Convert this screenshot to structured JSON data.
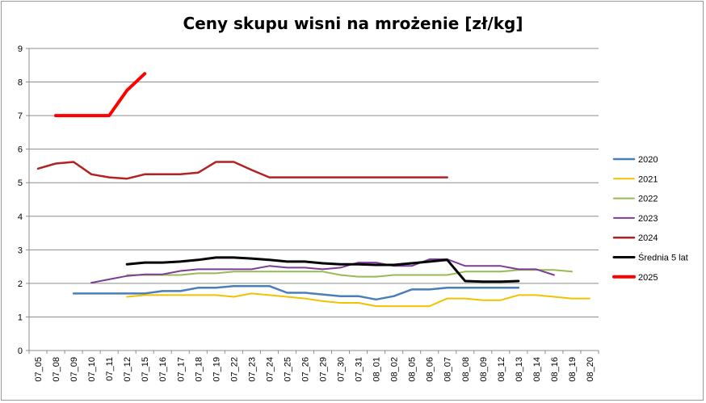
{
  "chart_data": {
    "type": "line",
    "title": "Ceny skupu wisni na mrożenie [zł/kg]",
    "xlabel": "",
    "ylabel": "",
    "ylim": [
      0,
      9
    ],
    "yticks": [
      "0",
      "1",
      "2",
      "3",
      "4",
      "5",
      "6",
      "7",
      "8",
      "9"
    ],
    "grid": "horizontal",
    "legend_position": "right",
    "categories": [
      "07_05",
      "07_08",
      "07_09",
      "07_10",
      "07_11",
      "07_12",
      "07_15",
      "07_16",
      "07_17",
      "07_18",
      "07_19",
      "07_22",
      "07_23",
      "07_24",
      "07_25",
      "07_26",
      "07_29",
      "07_30",
      "07_31",
      "08_01",
      "08_02",
      "08_05",
      "08_06",
      "08_07",
      "08_08",
      "08_09",
      "08_12",
      "08_13",
      "08_14",
      "08_16",
      "08_19",
      "08_20"
    ],
    "series": [
      {
        "name": "2020",
        "color": "#4a7ebb",
        "width": 2.5,
        "values": [
          null,
          null,
          1.7,
          1.7,
          1.7,
          1.7,
          1.7,
          1.77,
          1.77,
          1.87,
          1.87,
          1.92,
          1.92,
          1.92,
          1.72,
          1.72,
          1.67,
          1.62,
          1.62,
          1.52,
          1.62,
          1.82,
          1.82,
          1.87,
          1.87,
          1.87,
          1.87,
          1.87,
          null,
          null,
          null,
          null
        ]
      },
      {
        "name": "2021",
        "color": "#f2c200",
        "width": 2,
        "values": [
          null,
          null,
          null,
          null,
          null,
          1.6,
          1.65,
          1.65,
          1.65,
          1.65,
          1.65,
          1.6,
          1.7,
          1.65,
          1.6,
          1.55,
          1.47,
          1.42,
          1.42,
          1.32,
          1.32,
          1.32,
          1.32,
          1.55,
          1.55,
          1.5,
          1.5,
          1.65,
          1.65,
          1.6,
          1.55,
          1.55
        ]
      },
      {
        "name": "2022",
        "color": "#98b954",
        "width": 2,
        "values": [
          null,
          null,
          null,
          null,
          null,
          2.25,
          2.25,
          2.25,
          2.25,
          2.3,
          2.3,
          2.35,
          2.35,
          2.35,
          2.35,
          2.35,
          2.35,
          2.25,
          2.2,
          2.2,
          2.25,
          2.25,
          2.25,
          2.25,
          2.35,
          2.35,
          2.35,
          2.4,
          2.4,
          2.4,
          2.35,
          null
        ]
      },
      {
        "name": "2023",
        "color": "#7d3c98",
        "width": 2,
        "values": [
          null,
          null,
          null,
          2.02,
          2.12,
          2.22,
          2.27,
          2.27,
          2.37,
          2.42,
          2.42,
          2.42,
          2.42,
          2.52,
          2.47,
          2.47,
          2.42,
          2.47,
          2.62,
          2.62,
          2.52,
          2.52,
          2.72,
          2.72,
          2.52,
          2.52,
          2.52,
          2.42,
          2.42,
          2.25,
          null,
          null
        ]
      },
      {
        "name": "2024",
        "color": "#b22222",
        "width": 2.5,
        "values": [
          5.42,
          5.57,
          5.62,
          5.25,
          5.16,
          5.12,
          5.25,
          5.25,
          5.25,
          5.3,
          5.62,
          5.62,
          5.38,
          5.16,
          5.16,
          5.16,
          5.16,
          5.16,
          5.16,
          5.16,
          5.16,
          5.16,
          5.16,
          5.16,
          null,
          null,
          null,
          null,
          null,
          null,
          null,
          null
        ]
      },
      {
        "name": "Średnia 5 lat",
        "color": "#000000",
        "width": 3,
        "values": [
          null,
          null,
          null,
          null,
          null,
          2.57,
          2.62,
          2.62,
          2.65,
          2.7,
          2.77,
          2.77,
          2.74,
          2.7,
          2.65,
          2.65,
          2.6,
          2.57,
          2.57,
          2.55,
          2.55,
          2.6,
          2.65,
          2.7,
          2.07,
          2.05,
          2.05,
          2.07,
          null,
          null,
          null,
          null
        ]
      },
      {
        "name": "2025",
        "color": "#ff0000",
        "width": 4,
        "values": [
          null,
          7.0,
          7.0,
          7.0,
          7.0,
          7.75,
          8.25,
          null,
          null,
          null,
          null,
          null,
          null,
          null,
          null,
          null,
          null,
          null,
          null,
          null,
          null,
          null,
          null,
          null,
          null,
          null,
          null,
          null,
          null,
          null,
          null,
          null
        ]
      }
    ]
  }
}
